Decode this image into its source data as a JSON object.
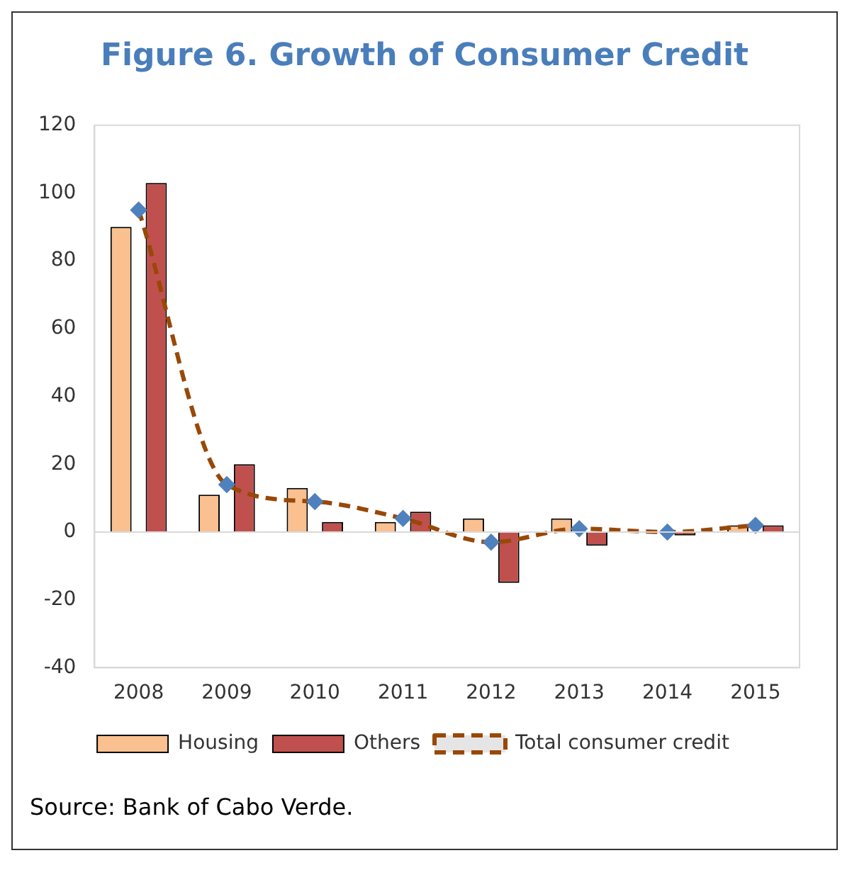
{
  "chart_data": {
    "type": "bar",
    "title": "Figure 6. Growth of Consumer Credit",
    "categories": [
      "2008",
      "2009",
      "2010",
      "2011",
      "2012",
      "2013",
      "2014",
      "2015"
    ],
    "series": [
      {
        "name": "Housing",
        "color": "#fac090",
        "values": [
          90,
          11,
          13,
          3,
          4,
          4,
          0,
          2
        ]
      },
      {
        "name": "Others",
        "color": "#c0504d",
        "values": [
          103,
          20,
          3,
          6,
          -15,
          -4,
          -1,
          2
        ]
      },
      {
        "name": "Total consumer credit",
        "type": "line",
        "color": "#984807",
        "line_style": "dashed",
        "marker": "diamond",
        "values": [
          95,
          14,
          9,
          4,
          -3,
          1,
          0,
          2
        ]
      }
    ],
    "ylim": [
      -40,
      120
    ],
    "yticks": [
      -40,
      -20,
      0,
      20,
      40,
      60,
      80,
      100,
      120
    ],
    "grid": false,
    "legend": "bottom",
    "ref_lines": [
      {
        "axis": "y",
        "value": 0,
        "color": "#d9d9d9"
      }
    ],
    "annotations": [
      "Source: Bank of Cabo Verde."
    ]
  }
}
